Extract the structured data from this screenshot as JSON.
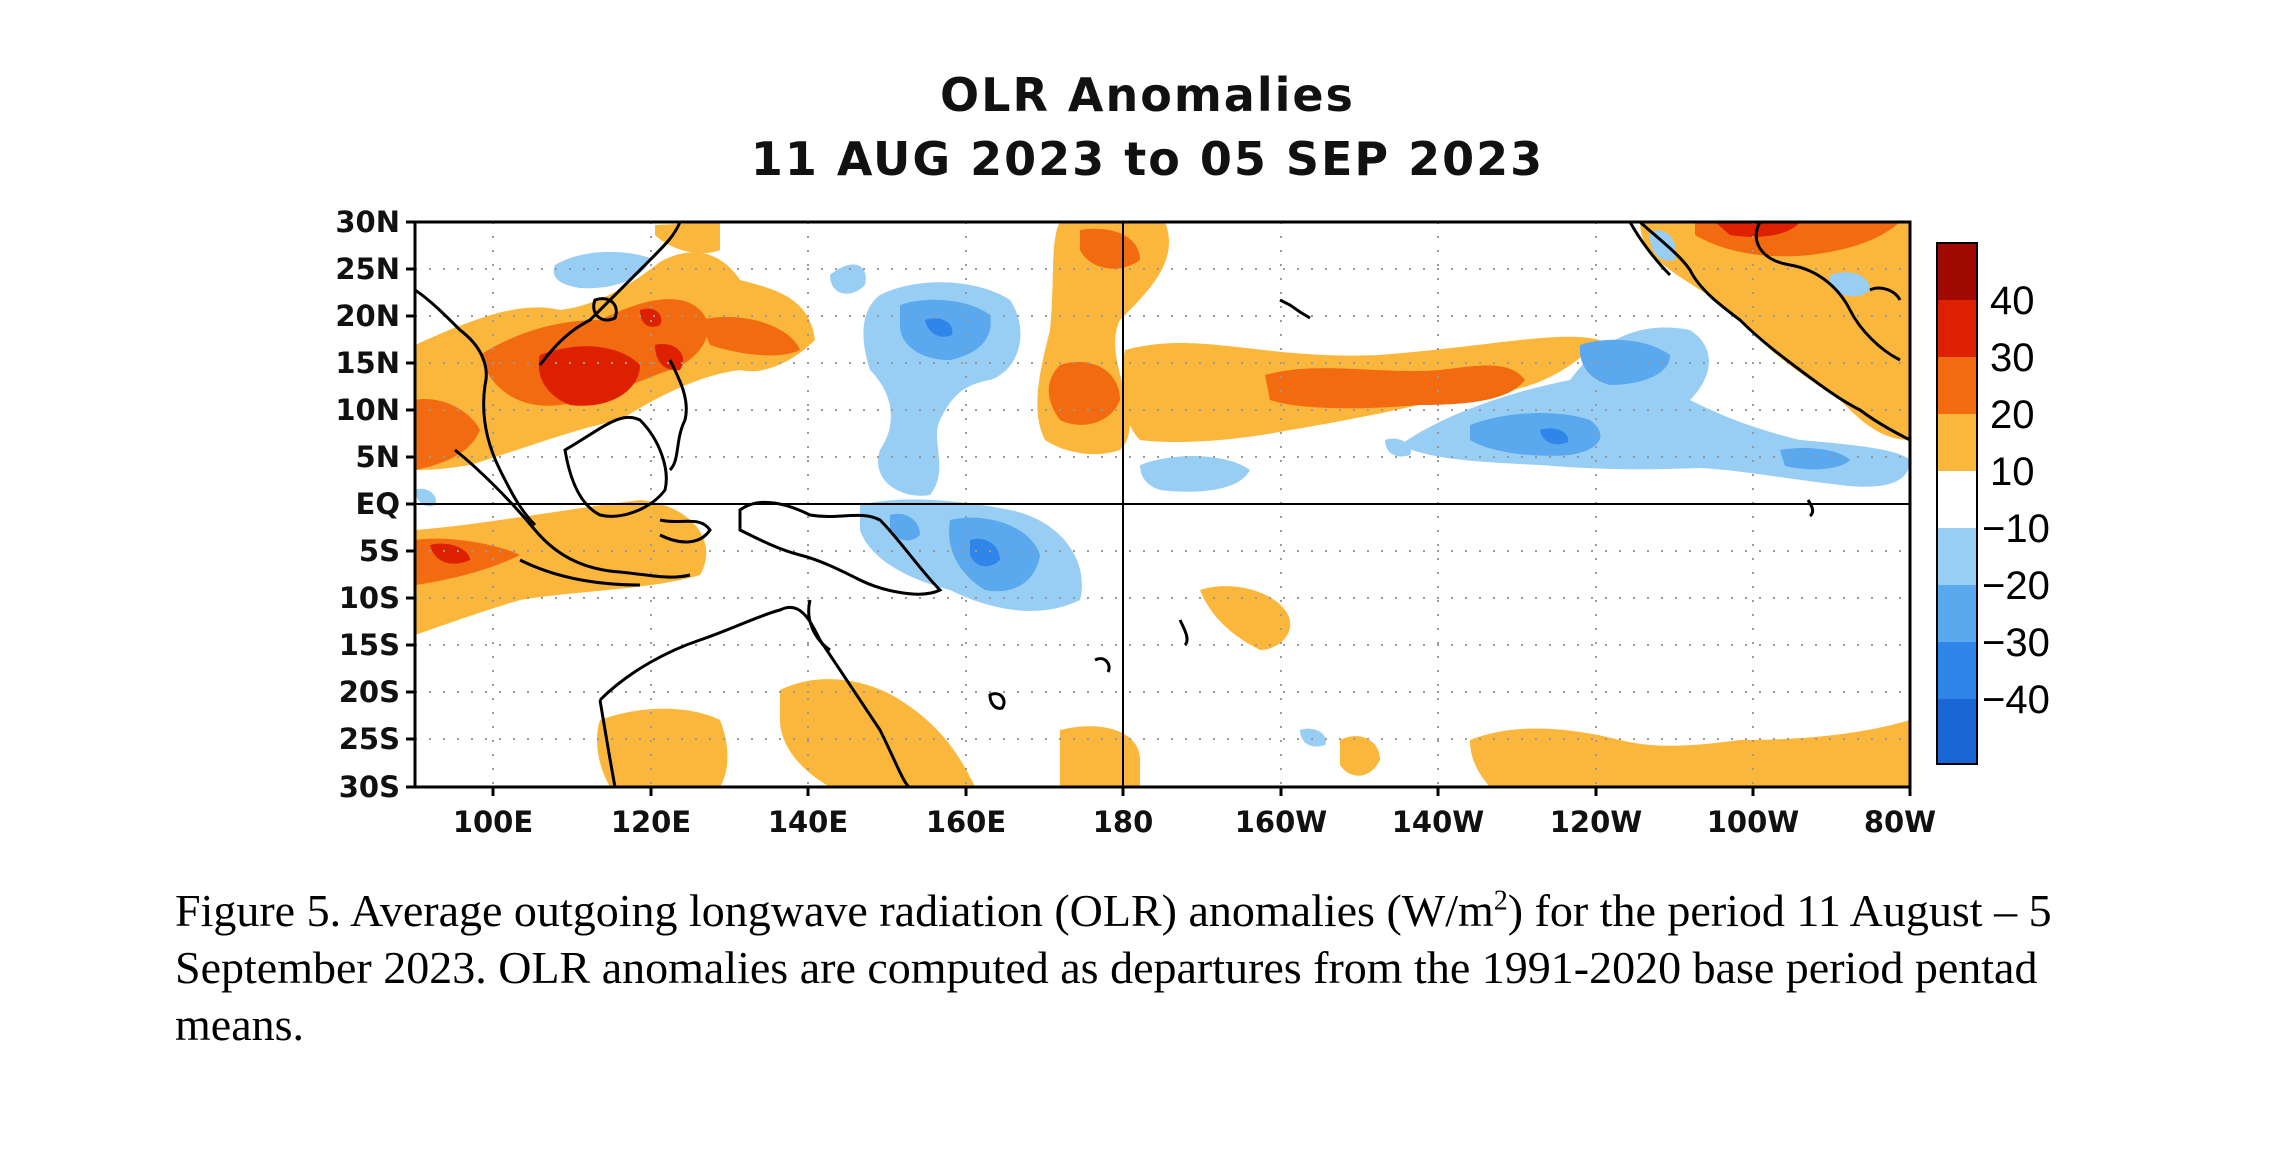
{
  "title": {
    "line1": "OLR Anomalies",
    "line2": "11 AUG 2023 to 05 SEP 2023"
  },
  "map": {
    "region": {
      "lon_range": [
        90,
        280
      ],
      "lat_range": [
        -30,
        30
      ]
    },
    "lat_labels": [
      "30N",
      "25N",
      "20N",
      "15N",
      "10N",
      "5N",
      "EQ",
      "5S",
      "10S",
      "15S",
      "20S",
      "25S",
      "30S"
    ],
    "lon_labels": [
      "100E",
      "120E",
      "140E",
      "160E",
      "180",
      "160W",
      "140W",
      "120W",
      "100W",
      "80W"
    ],
    "reference_lines": [
      "EQ",
      "180"
    ],
    "grid": "dotted"
  },
  "colorbar": {
    "labels": [
      "40",
      "30",
      "20",
      "10",
      "−10",
      "−20",
      "−30",
      "−40"
    ],
    "colors": [
      "#a00a00",
      "#dd2000",
      "#f26b10",
      "#fbb73b",
      "#ffffff",
      "#98cdf4",
      "#5aa8ee",
      "#2f86e8",
      "#1a66d4"
    ]
  },
  "caption": {
    "part1": "Figure 5. Average outgoing longwave radiation (OLR) anomalies (W/m",
    "superscript": "2",
    "part2": ") for the period 11 August –  5 September 2023.  OLR anomalies are computed as departures from the 1991-2020 base period pentad means."
  }
}
